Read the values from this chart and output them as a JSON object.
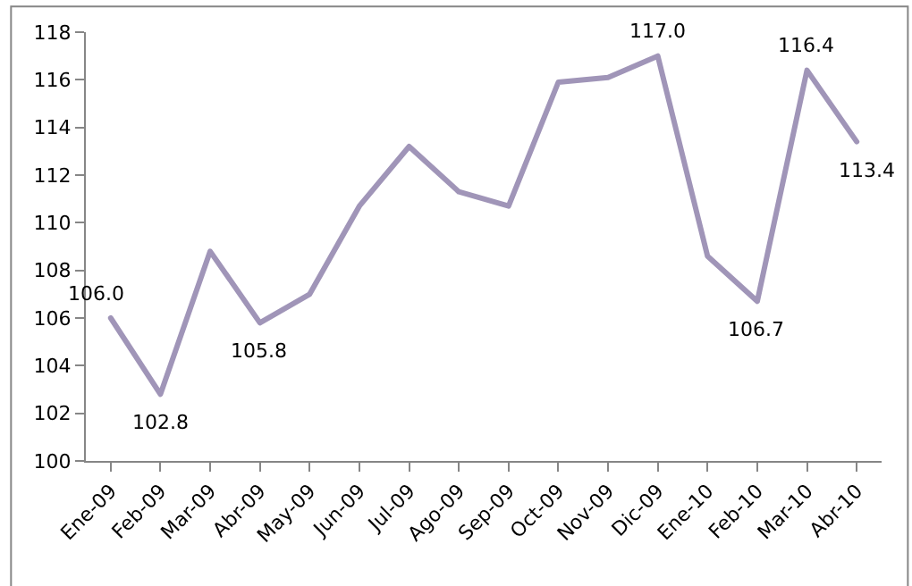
{
  "chart_data": {
    "type": "line",
    "categories": [
      "Ene-09",
      "Feb-09",
      "Mar-09",
      "Abr-09",
      "May-09",
      "Jun-09",
      "Jul-09",
      "Ago-09",
      "Sep-09",
      "Oct-09",
      "Nov-09",
      "Dic-09",
      "Ene-10",
      "Feb-10",
      "Mar-10",
      "Abr-10"
    ],
    "series": [
      {
        "color": "#a095b8",
        "values": [
          106.0,
          102.8,
          108.8,
          105.8,
          107.0,
          110.7,
          113.2,
          111.3,
          110.7,
          115.9,
          116.1,
          117.0,
          108.6,
          106.7,
          116.4,
          113.4
        ],
        "value_labels": [
          "106.0",
          "102.8",
          null,
          "105.8",
          null,
          null,
          null,
          null,
          null,
          null,
          null,
          "117.0",
          null,
          "106.7",
          "116.4",
          "113.4"
        ]
      }
    ],
    "ylim": [
      100,
      118
    ],
    "yticks": [
      100,
      102,
      104,
      106,
      108,
      110,
      112,
      114,
      116,
      118
    ],
    "grid": false,
    "marker": "none",
    "line_style": "solid"
  }
}
